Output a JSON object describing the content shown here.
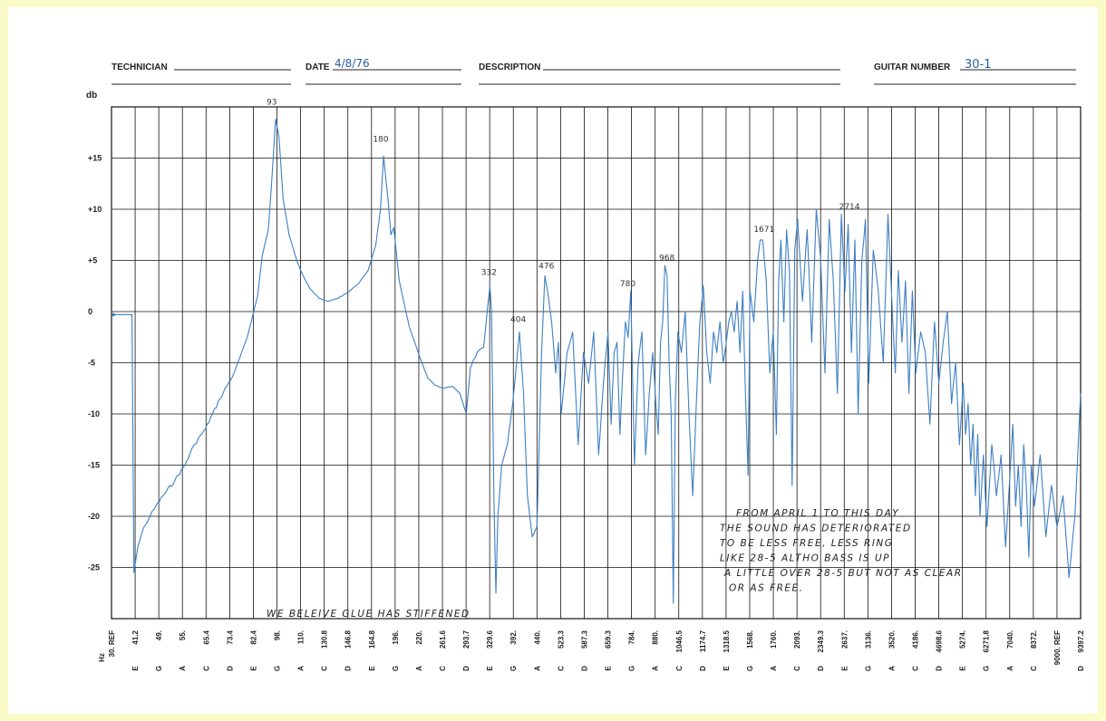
{
  "header": {
    "technician_label": "TECHNICIAN",
    "technician_value": "",
    "date_label": "DATE",
    "date_value": "4/8/76",
    "description_label": "DESCRIPTION",
    "description_value": "",
    "guitar_number_label": "GUITAR NUMBER",
    "guitar_number_value": "30-1"
  },
  "colors": {
    "trace": "#3d7fc4",
    "grid": "#111111",
    "background": "#fbfbc7"
  },
  "chart_data": {
    "type": "line",
    "ylabel": "db",
    "xlabel": "Hz",
    "ylim": [
      -30,
      20
    ],
    "y_ticks": [
      "+15",
      "+10",
      "+5",
      "0",
      "-5",
      "-10",
      "-15",
      "-20",
      "-25"
    ],
    "y_tick_values": [
      15,
      10,
      5,
      0,
      -5,
      -10,
      -15,
      -20,
      -25
    ],
    "x_ticks": [
      {
        "freq": "30. REF",
        "note": ""
      },
      {
        "freq": "41.2",
        "note": "E"
      },
      {
        "freq": "49.",
        "note": "G"
      },
      {
        "freq": "55.",
        "note": "A"
      },
      {
        "freq": "65.4",
        "note": "C"
      },
      {
        "freq": "73.4",
        "note": "D"
      },
      {
        "freq": "82.4",
        "note": "E"
      },
      {
        "freq": "98.",
        "note": "G"
      },
      {
        "freq": "110.",
        "note": "A"
      },
      {
        "freq": "130.8",
        "note": "C"
      },
      {
        "freq": "146.8",
        "note": "D"
      },
      {
        "freq": "164.8",
        "note": "E"
      },
      {
        "freq": "196.",
        "note": "G"
      },
      {
        "freq": "220.",
        "note": "A"
      },
      {
        "freq": "261.6",
        "note": "C"
      },
      {
        "freq": "293.7",
        "note": "D"
      },
      {
        "freq": "329.6",
        "note": "E"
      },
      {
        "freq": "392.",
        "note": "G"
      },
      {
        "freq": "440.",
        "note": "A"
      },
      {
        "freq": "523.3",
        "note": "C"
      },
      {
        "freq": "587.3",
        "note": "D"
      },
      {
        "freq": "659.3",
        "note": "E"
      },
      {
        "freq": "784.",
        "note": "G"
      },
      {
        "freq": "880.",
        "note": "A"
      },
      {
        "freq": "1046.5",
        "note": "C"
      },
      {
        "freq": "1174.7",
        "note": "D"
      },
      {
        "freq": "1318.5",
        "note": "E"
      },
      {
        "freq": "1568.",
        "note": "G"
      },
      {
        "freq": "1760.",
        "note": "A"
      },
      {
        "freq": "2093.",
        "note": "C"
      },
      {
        "freq": "2349.3",
        "note": "D"
      },
      {
        "freq": "2637.",
        "note": "E"
      },
      {
        "freq": "3136.",
        "note": "G"
      },
      {
        "freq": "3520.",
        "note": "A"
      },
      {
        "freq": "4186.",
        "note": "C"
      },
      {
        "freq": "4698.6",
        "note": "D"
      },
      {
        "freq": "5274.",
        "note": "E"
      },
      {
        "freq": "6271.8",
        "note": "G"
      },
      {
        "freq": "7040.",
        "note": "A"
      },
      {
        "freq": "8372.",
        "note": "C"
      },
      {
        "freq": "9000. REF",
        "note": ""
      },
      {
        "freq": "9397.2",
        "note": "D"
      }
    ],
    "series": [
      {
        "points": [
          [
            30,
            -0.3
          ],
          [
            35,
            -0.3
          ],
          [
            38,
            -0.3
          ],
          [
            39.5,
            -0.3
          ],
          [
            40.5,
            -25.5
          ],
          [
            42,
            -23
          ],
          [
            44,
            -21
          ],
          [
            46,
            -20
          ],
          [
            48,
            -19
          ],
          [
            50,
            -18
          ],
          [
            53,
            -16.5
          ],
          [
            56,
            -15
          ],
          [
            60,
            -13
          ],
          [
            65,
            -11.5
          ],
          [
            70,
            -8.5
          ],
          [
            75,
            -6
          ],
          [
            80,
            -2.5
          ],
          [
            85,
            1.5
          ],
          [
            88,
            5.5
          ],
          [
            90,
            6.8
          ],
          [
            92,
            8
          ],
          [
            94,
            12
          ],
          [
            96,
            16.5
          ],
          [
            97,
            18.8
          ],
          [
            99,
            17
          ],
          [
            101,
            11
          ],
          [
            104,
            7.5
          ],
          [
            108,
            5
          ],
          [
            112,
            3.5
          ],
          [
            118,
            2.2
          ],
          [
            126,
            1.3
          ],
          [
            133,
            1
          ],
          [
            140,
            1.3
          ],
          [
            148,
            2
          ],
          [
            155,
            2.8
          ],
          [
            162,
            4
          ],
          [
            170,
            6.5
          ],
          [
            176,
            10
          ],
          [
            180,
            15.2
          ],
          [
            183,
            13
          ],
          [
            186,
            11
          ],
          [
            190,
            7.5
          ],
          [
            194,
            8.2
          ],
          [
            200,
            3
          ],
          [
            210,
            -1.5
          ],
          [
            222,
            -4.5
          ],
          [
            235,
            -6.5
          ],
          [
            248,
            -7.2
          ],
          [
            262,
            -7.5
          ],
          [
            275,
            -7.3
          ],
          [
            285,
            -8
          ],
          [
            294,
            -10
          ],
          [
            300,
            -5.5
          ],
          [
            310,
            -4
          ],
          [
            320,
            -3.5
          ],
          [
            330,
            2.5
          ],
          [
            334,
            0
          ],
          [
            340,
            -18
          ],
          [
            345,
            -27.5
          ],
          [
            350,
            -20
          ],
          [
            360,
            -15
          ],
          [
            375,
            -13
          ],
          [
            390,
            -9
          ],
          [
            404,
            -2
          ],
          [
            412,
            -8
          ],
          [
            420,
            -18
          ],
          [
            430,
            -22
          ],
          [
            440,
            -21
          ],
          [
            455,
            -4
          ],
          [
            466,
            3.5
          ],
          [
            476,
            2
          ],
          [
            490,
            -1
          ],
          [
            505,
            -6
          ],
          [
            515,
            -3
          ],
          [
            525,
            -10
          ],
          [
            540,
            -4
          ],
          [
            555,
            -2
          ],
          [
            570,
            -13
          ],
          [
            585,
            -4
          ],
          [
            600,
            -7
          ],
          [
            615,
            -2
          ],
          [
            630,
            -14
          ],
          [
            645,
            -7
          ],
          [
            660,
            -2
          ],
          [
            675,
            -11
          ],
          [
            690,
            -4
          ],
          [
            705,
            -3
          ],
          [
            720,
            -12
          ],
          [
            735,
            -6
          ],
          [
            750,
            -1
          ],
          [
            765,
            -2.5
          ],
          [
            780,
            2
          ],
          [
            795,
            -15
          ],
          [
            810,
            -5
          ],
          [
            825,
            -2
          ],
          [
            840,
            -14
          ],
          [
            855,
            -8
          ],
          [
            870,
            -4
          ],
          [
            885,
            -9
          ],
          [
            900,
            -12
          ],
          [
            915,
            -3
          ],
          [
            930,
            -1
          ],
          [
            945,
            4.5
          ],
          [
            960,
            3.5
          ],
          [
            975,
            -5
          ],
          [
            990,
            -10
          ],
          [
            1005,
            -28.5
          ],
          [
            1020,
            -9
          ],
          [
            1040,
            -2
          ],
          [
            1060,
            -4
          ],
          [
            1080,
            0
          ],
          [
            1100,
            -10
          ],
          [
            1120,
            -18
          ],
          [
            1140,
            -9
          ],
          [
            1160,
            -1
          ],
          [
            1180,
            2.5
          ],
          [
            1200,
            -4
          ],
          [
            1220,
            -7
          ],
          [
            1240,
            -2
          ],
          [
            1260,
            -4
          ],
          [
            1280,
            -1
          ],
          [
            1300,
            -5
          ],
          [
            1320,
            -3
          ],
          [
            1345,
            -1
          ],
          [
            1370,
            0
          ],
          [
            1400,
            -2
          ],
          [
            1430,
            1
          ],
          [
            1460,
            -4
          ],
          [
            1490,
            2
          ],
          [
            1520,
            -8
          ],
          [
            1550,
            -16
          ],
          [
            1570,
            2
          ],
          [
            1600,
            -1
          ],
          [
            1630,
            5
          ],
          [
            1650,
            7
          ],
          [
            1671,
            7
          ],
          [
            1700,
            3
          ],
          [
            1730,
            -6
          ],
          [
            1760,
            -2
          ],
          [
            1800,
            -12
          ],
          [
            1830,
            3
          ],
          [
            1860,
            7
          ],
          [
            1900,
            -1
          ],
          [
            1940,
            8
          ],
          [
            1980,
            4
          ],
          [
            2020,
            -17
          ],
          [
            2060,
            6
          ],
          [
            2100,
            9
          ],
          [
            2150,
            1
          ],
          [
            2200,
            8
          ],
          [
            2250,
            -3
          ],
          [
            2300,
            10
          ],
          [
            2350,
            5
          ],
          [
            2400,
            -6
          ],
          [
            2450,
            9
          ],
          [
            2500,
            3
          ],
          [
            2550,
            -8
          ],
          [
            2600,
            9.5
          ],
          [
            2650,
            2
          ],
          [
            2714,
            8.5
          ],
          [
            2780,
            -4
          ],
          [
            2850,
            7
          ],
          [
            2920,
            -10
          ],
          [
            3000,
            5
          ],
          [
            3080,
            9
          ],
          [
            3150,
            -7
          ],
          [
            3220,
            6
          ],
          [
            3300,
            2
          ],
          [
            3380,
            -5
          ],
          [
            3460,
            9.5
          ],
          [
            3540,
            0
          ],
          [
            3620,
            -6
          ],
          [
            3700,
            4
          ],
          [
            3800,
            -3
          ],
          [
            3900,
            3
          ],
          [
            4000,
            -8
          ],
          [
            4100,
            2
          ],
          [
            4200,
            -6
          ],
          [
            4300,
            -2
          ],
          [
            4400,
            -4
          ],
          [
            4500,
            -11
          ],
          [
            4600,
            -1
          ],
          [
            4700,
            -7
          ],
          [
            4800,
            -3
          ],
          [
            4900,
            0
          ],
          [
            5000,
            -9
          ],
          [
            5100,
            -5
          ],
          [
            5200,
            -13
          ],
          [
            5300,
            -7
          ],
          [
            5400,
            -12
          ],
          [
            5500,
            -9
          ],
          [
            5600,
            -15
          ],
          [
            5700,
            -11
          ],
          [
            5800,
            -18
          ],
          [
            5900,
            -12
          ],
          [
            6000,
            -20
          ],
          [
            6150,
            -14
          ],
          [
            6300,
            -21
          ],
          [
            6450,
            -13
          ],
          [
            6600,
            -18
          ],
          [
            6750,
            -14
          ],
          [
            6900,
            -23
          ],
          [
            7050,
            -16
          ],
          [
            7200,
            -11
          ],
          [
            7350,
            -19
          ],
          [
            7500,
            -15
          ],
          [
            7650,
            -21
          ],
          [
            7800,
            -13
          ],
          [
            7950,
            -17
          ],
          [
            8100,
            -24
          ],
          [
            8250,
            -15
          ],
          [
            8400,
            -19
          ],
          [
            8550,
            -14
          ],
          [
            8700,
            -22
          ],
          [
            8850,
            -17
          ],
          [
            9000,
            -21
          ],
          [
            9100,
            -18
          ],
          [
            9200,
            -26
          ],
          [
            9300,
            -20
          ],
          [
            9397.2,
            -8
          ]
        ]
      }
    ],
    "annotations": {
      "peak_labels": [
        "93",
        "180",
        "332",
        "404",
        "476",
        "780",
        "968",
        "1671",
        "2714"
      ],
      "note_lines": [
        "FROM APRIL 1 TO THIS DAY",
        "THE SOUND HAS DETERIORATED",
        "TO BE LESS FREE, LESS RING",
        "LIKE 28-5 ALTHO BASS IS UP",
        "A LITTLE OVER 28-5 BUT NOT AS CLEAR",
        "OR AS FREE."
      ],
      "bottom_note": "WE BELEIVE GLUE HAS STIFFENED"
    }
  }
}
